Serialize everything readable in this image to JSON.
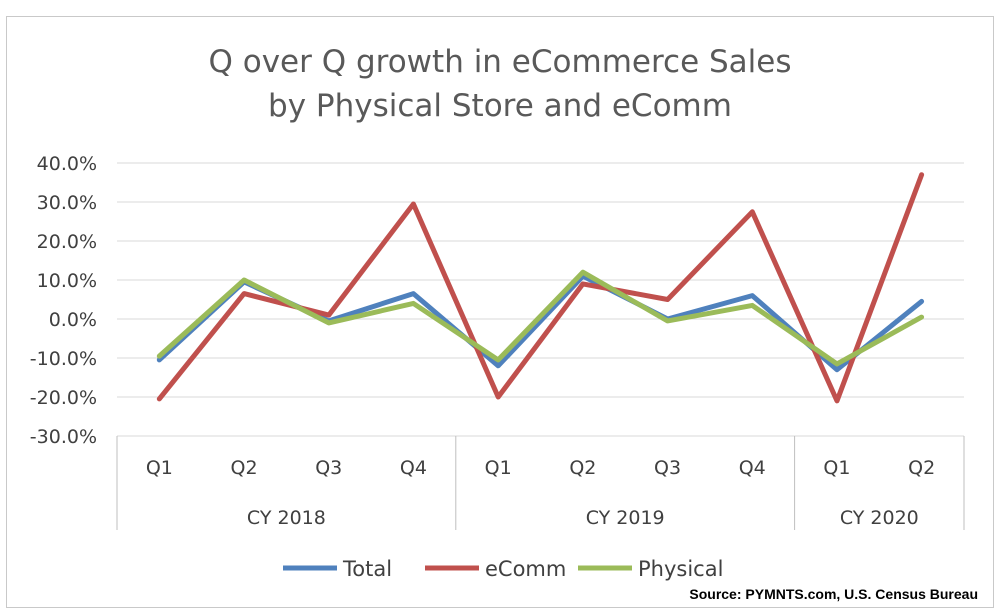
{
  "chart_data": {
    "type": "line",
    "title": "Q over Q growth in eCommerce Sales",
    "subtitle": "by Physical Store and eComm",
    "categories": [
      "Q1",
      "Q2",
      "Q3",
      "Q4",
      "Q1",
      "Q2",
      "Q3",
      "Q4",
      "Q1",
      "Q2"
    ],
    "groups": [
      {
        "label": "CY 2018",
        "count": 4
      },
      {
        "label": "CY 2019",
        "count": 4
      },
      {
        "label": "CY 2020",
        "count": 2
      }
    ],
    "ylim": [
      -30,
      40
    ],
    "yticks": [
      -30,
      -20,
      -10,
      0,
      10,
      20,
      30,
      40
    ],
    "ytick_labels": [
      "-30.0%",
      "-20.0%",
      "-10.0%",
      "0.0%",
      "10.0%",
      "20.0%",
      "30.0%",
      "40.0%"
    ],
    "grid": true,
    "legend_position": "bottom",
    "series": [
      {
        "name": "Total",
        "color": "#4f81bd",
        "values": [
          -10.5,
          9.5,
          -0.5,
          6.5,
          -12,
          11,
          0,
          6,
          -13,
          4.5
        ]
      },
      {
        "name": "eComm",
        "color": "#c0504d",
        "values": [
          -20.5,
          6.5,
          1,
          29.5,
          -20,
          9,
          5,
          27.5,
          -21,
          37
        ]
      },
      {
        "name": "Physical",
        "color": "#9bbb59",
        "values": [
          -9.5,
          10,
          -1,
          4,
          -10.5,
          12,
          -0.5,
          3.5,
          -11.5,
          0.5
        ]
      }
    ],
    "source": "Source: PYMNTS.com, U.S. Census Bureau"
  }
}
